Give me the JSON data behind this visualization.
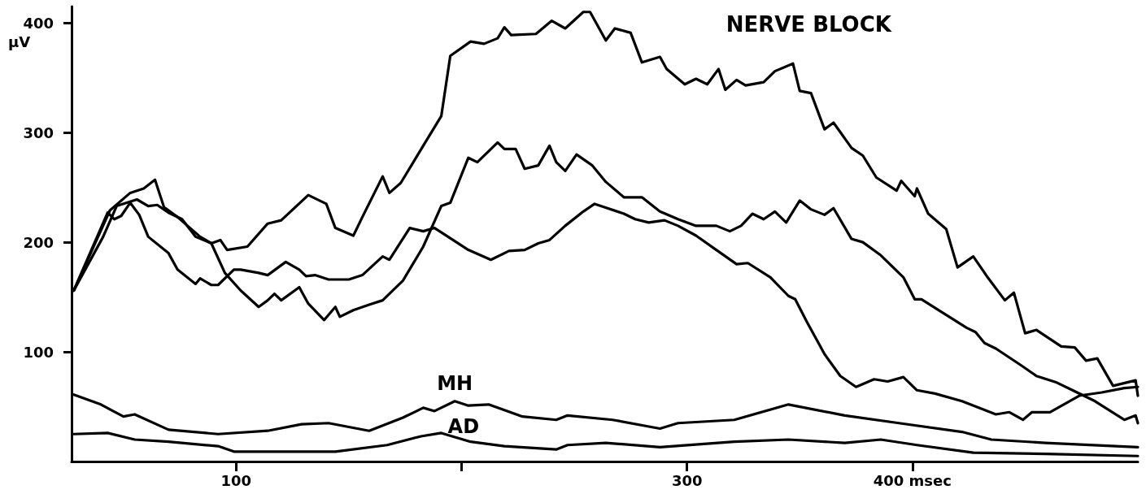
{
  "chart_data": {
    "type": "line",
    "title": "NERVE BLOCK",
    "ylabel": "µV",
    "xlim": [
      27,
      500
    ],
    "xticks": [
      {
        "value": 100,
        "label": "100"
      },
      {
        "value": 200,
        "label": null
      },
      {
        "value": 300,
        "label": "300"
      },
      {
        "value": 400,
        "label": "400 msec"
      }
    ],
    "ylim": [
      0,
      415
    ],
    "yticks": [
      100,
      200,
      300,
      400
    ],
    "grid": false,
    "legend": false,
    "marker": "none",
    "line_style": "solid",
    "series": [
      {
        "color": "#000000",
        "x": [
          28,
          44,
          53,
          59,
          64,
          68,
          74,
          84,
          89,
          93,
          96,
          105,
          114,
          120,
          132,
          140,
          144,
          152,
          156,
          165,
          168,
          173,
          183,
          191,
          195,
          204,
          210,
          216,
          219,
          222,
          233,
          240,
          246,
          254,
          257,
          264,
          268,
          275,
          280,
          288,
          291,
          299,
          304,
          309,
          314,
          317,
          322,
          326,
          334,
          339,
          347,
          350,
          355,
          361,
          365,
          373,
          378,
          384,
          393,
          395,
          401,
          402,
          407,
          415,
          420,
          427,
          433,
          441,
          445,
          450,
          455,
          466,
          472,
          477,
          482,
          489,
          499,
          500
        ],
        "values": [
          156,
          229,
          245,
          249,
          257,
          232,
          223,
          205,
          199,
          202,
          193,
          196,
          217,
          220,
          243,
          235,
          213,
          206,
          223,
          260,
          245,
          254,
          288,
          315,
          370,
          383,
          381,
          386,
          396,
          389,
          390,
          402,
          395,
          410,
          410,
          384,
          395,
          391,
          364,
          369,
          358,
          344,
          349,
          344,
          358,
          339,
          348,
          343,
          346,
          356,
          363,
          338,
          336,
          303,
          309,
          286,
          279,
          259,
          247,
          256,
          242,
          249,
          226,
          212,
          177,
          187,
          169,
          147,
          154,
          117,
          120,
          105,
          104,
          92,
          94,
          69,
          74,
          60
        ]
      },
      {
        "color": "#000000",
        "x": [
          28,
          41,
          47,
          56,
          61,
          65,
          70,
          76,
          82,
          89,
          95,
          102,
          110,
          114,
          117,
          120,
          128,
          132,
          139,
          144,
          146,
          152,
          159,
          165,
          174,
          183,
          191,
          195,
          203,
          207,
          216,
          219,
          224,
          228,
          234,
          239,
          242,
          246,
          251,
          258,
          264,
          272,
          280,
          288,
          296,
          304,
          313,
          319,
          324,
          329,
          334,
          339,
          344,
          350,
          355,
          361,
          365,
          373,
          378,
          386,
          391,
          396,
          401,
          404,
          414,
          424,
          428,
          432,
          437,
          448,
          455,
          464,
          471,
          481,
          494,
          499,
          500
        ],
        "values": [
          156,
          205,
          233,
          239,
          233,
          234,
          227,
          221,
          205,
          199,
          172,
          156,
          141,
          147,
          153,
          147,
          159,
          144,
          129,
          141,
          132,
          138,
          143,
          147,
          165,
          196,
          233,
          236,
          277,
          273,
          291,
          285,
          285,
          267,
          270,
          288,
          273,
          265,
          280,
          270,
          255,
          241,
          241,
          228,
          221,
          215,
          215,
          210,
          215,
          226,
          221,
          228,
          218,
          238,
          230,
          225,
          231,
          203,
          200,
          188,
          178,
          168,
          148,
          148,
          135,
          122,
          118,
          108,
          103,
          88,
          78,
          72,
          65,
          55,
          38,
          42,
          35
        ]
      },
      {
        "color": "#000000",
        "x": [
          28,
          43,
          46,
          49,
          53,
          57,
          61,
          70,
          74,
          82,
          84,
          89,
          92,
          99,
          102,
          110,
          114,
          122,
          128,
          131,
          135,
          141,
          150,
          156,
          165,
          168,
          177,
          183,
          188,
          194,
          203,
          213,
          221,
          228,
          234,
          239,
          246,
          254,
          259,
          272,
          277,
          283,
          290,
          296,
          304,
          313,
          322,
          327,
          337,
          345,
          348,
          353,
          361,
          368,
          375,
          383,
          389,
          396,
          402,
          410,
          422,
          437,
          443,
          449,
          453,
          461,
          474,
          484,
          494,
          500
        ],
        "values": [
          156,
          227,
          221,
          224,
          236,
          225,
          205,
          190,
          175,
          162,
          167,
          161,
          161,
          175,
          175,
          172,
          170,
          182,
          175,
          169,
          170,
          166,
          166,
          170,
          187,
          184,
          213,
          210,
          213,
          205,
          193,
          184,
          192,
          193,
          199,
          202,
          215,
          228,
          235,
          226,
          221,
          218,
          220,
          215,
          206,
          193,
          180,
          181,
          168,
          151,
          148,
          128,
          98,
          78,
          68,
          75,
          73,
          77,
          65,
          62,
          55,
          43,
          45,
          38,
          45,
          45,
          60,
          63,
          67,
          68
        ]
      },
      {
        "name": "MH",
        "color": "#000000",
        "x": [
          28,
          40,
          50,
          55,
          70,
          92,
          114,
          129,
          141,
          159,
          174,
          183,
          188,
          197,
          203,
          212,
          227,
          242,
          247,
          267,
          288,
          296,
          321,
          345,
          370,
          394,
          422,
          435,
          459,
          500
        ],
        "values": [
          61,
          52,
          41,
          43,
          29,
          25,
          28,
          34,
          35,
          28,
          40,
          49,
          46,
          55,
          51,
          52,
          41,
          38,
          42,
          38,
          30,
          35,
          38,
          52,
          42,
          35,
          27,
          20,
          17,
          13
        ]
      },
      {
        "name": "AD",
        "color": "#000000",
        "x": [
          28,
          43,
          55,
          70,
          92,
          99,
          120,
          144,
          167,
          182,
          191,
          204,
          219,
          242,
          247,
          264,
          288,
          321,
          345,
          370,
          386,
          402,
          427,
          459,
          500
        ],
        "values": [
          25,
          26,
          20,
          18,
          14,
          9,
          9,
          9,
          15,
          23,
          26,
          18,
          14,
          11,
          15,
          17,
          13,
          18,
          20,
          17,
          20,
          15,
          8,
          7,
          5
        ]
      }
    ]
  }
}
